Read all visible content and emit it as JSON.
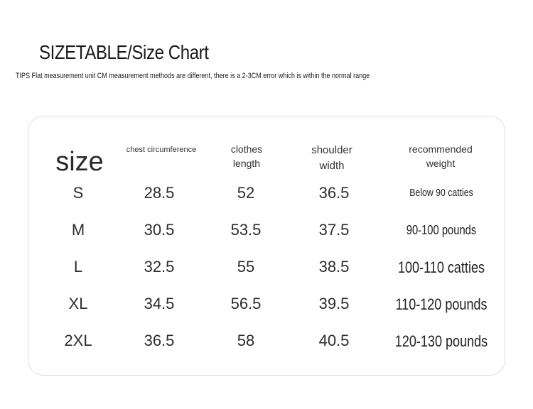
{
  "title": "SIZETABLE/Size Chart",
  "tips": "TIPS Flat measurement unit CM measurement methods are different, there is a 2-3CM error which is within the normal range",
  "table": {
    "headers": {
      "size": "size",
      "chest": "chest circumference",
      "length": "clothes length",
      "shoulder": "shoulder width",
      "weight": "recommended weight"
    },
    "rows": [
      {
        "size": "S",
        "chest": "28.5",
        "length": "52",
        "shoulder": "36.5",
        "weight": "Below 90 catties"
      },
      {
        "size": "M",
        "chest": "30.5",
        "length": "53.5",
        "shoulder": "37.5",
        "weight": "90-100 pounds"
      },
      {
        "size": "L",
        "chest": "32.5",
        "length": "55",
        "shoulder": "38.5",
        "weight": "100-110 catties"
      },
      {
        "size": "XL",
        "chest": "34.5",
        "length": "56.5",
        "shoulder": "39.5",
        "weight": "110-120 pounds"
      },
      {
        "size": "2XL",
        "chest": "36.5",
        "length": "58",
        "shoulder": "40.5",
        "weight": "120-130 pounds"
      }
    ]
  }
}
